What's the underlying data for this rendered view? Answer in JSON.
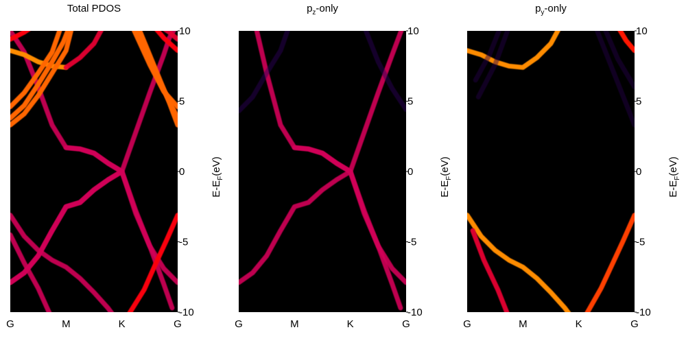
{
  "chart_data": [
    {
      "type": "heatmap",
      "title": "Total PDOS",
      "ylabel": "E-E_F(eV)",
      "ylabel_base": "E-E",
      "ylabel_sub": "F",
      "ylabel_tail": "(eV)",
      "x_ticks": [
        "G",
        "M",
        "K",
        "G"
      ],
      "y_ticks": [
        10,
        5,
        0,
        -5,
        -10
      ],
      "ylim": [
        -10,
        10
      ],
      "colormap": [
        "#000000",
        "#8000ff",
        "#ff0000",
        "#ffff00"
      ],
      "bands": [
        {
          "weight": 0.55,
          "points": [
            [
              0,
              -7.9
            ],
            [
              0.25,
              -7.2
            ],
            [
              0.5,
              -6.0
            ],
            [
              0.75,
              -4.2
            ],
            [
              1.0,
              -2.5
            ],
            [
              1.25,
              -2.2
            ],
            [
              1.5,
              -1.3
            ],
            [
              1.75,
              -0.6
            ],
            [
              2.0,
              0.0
            ]
          ]
        },
        {
          "weight": 0.55,
          "points": [
            [
              0,
              -7.9
            ],
            [
              0.25,
              -7.2
            ],
            [
              0.5,
              -6.0
            ],
            [
              0.75,
              -4.2
            ],
            [
              1.0,
              -2.5
            ],
            [
              1.25,
              -2.2
            ],
            [
              1.5,
              -1.3
            ],
            [
              1.75,
              -0.6
            ],
            [
              2.0,
              0.0
            ],
            [
              2.25,
              -3.0
            ],
            [
              2.5,
              -5.3
            ],
            [
              2.75,
              -6.9
            ],
            [
              3.0,
              -7.9
            ]
          ]
        },
        {
          "weight": 0.55,
          "points": [
            [
              0,
              10.0
            ],
            [
              0.25,
              8.5
            ],
            [
              0.5,
              6.0
            ],
            [
              0.75,
              3.3
            ],
            [
              1.0,
              1.7
            ],
            [
              1.25,
              1.6
            ],
            [
              1.5,
              1.3
            ],
            [
              1.75,
              0.6
            ],
            [
              2.0,
              0.0
            ],
            [
              2.25,
              2.8
            ],
            [
              2.5,
              5.6
            ],
            [
              2.75,
              8.3
            ],
            [
              2.85,
              9.5
            ],
            [
              3.0,
              10.5
            ]
          ]
        },
        {
          "weight": 0.55,
          "points": [
            [
              1.0,
              1.7
            ],
            [
              1.25,
              1.6
            ],
            [
              1.5,
              1.3
            ],
            [
              1.75,
              0.6
            ],
            [
              2.0,
              0.0
            ],
            [
              2.25,
              -2.8
            ],
            [
              2.5,
              -5.3
            ],
            [
              2.75,
              -8.0
            ],
            [
              2.9,
              -9.7
            ]
          ]
        },
        {
          "weight": 0.55,
          "points": [
            [
              0,
              -3.1
            ],
            [
              0.25,
              -4.6
            ],
            [
              0.5,
              -5.6
            ],
            [
              0.75,
              -6.3
            ],
            [
              1.0,
              -6.8
            ],
            [
              1.25,
              -7.6
            ],
            [
              1.5,
              -8.6
            ],
            [
              1.75,
              -9.7
            ],
            [
              1.9,
              -10.5
            ]
          ]
        },
        {
          "weight": 0.55,
          "points": [
            [
              0.0,
              -4.5
            ],
            [
              0.25,
              -6.5
            ],
            [
              0.5,
              -8.3
            ],
            [
              0.75,
              -10.5
            ]
          ]
        },
        {
          "weight": 0.65,
          "points": [
            [
              2.1,
              -10.3
            ],
            [
              2.4,
              -8.4
            ],
            [
              2.6,
              -6.6
            ],
            [
              2.8,
              -4.9
            ],
            [
              3.0,
              -3.1
            ]
          ]
        },
        {
          "weight": 0.85,
          "points": [
            [
              0,
              8.6
            ],
            [
              0.25,
              8.3
            ],
            [
              0.5,
              7.8
            ],
            [
              0.75,
              7.5
            ],
            [
              1.0,
              7.4
            ]
          ]
        },
        {
          "weight": 0.6,
          "points": [
            [
              1.0,
              7.4
            ],
            [
              1.25,
              8.1
            ],
            [
              1.5,
              9.1
            ],
            [
              1.65,
              10.2
            ]
          ]
        },
        {
          "weight": 0.65,
          "points": [
            [
              2.6,
              10.2
            ],
            [
              2.75,
              9.5
            ],
            [
              3.0,
              8.6
            ]
          ]
        },
        {
          "weight": 0.8,
          "points": [
            [
              0,
              4.6
            ],
            [
              0.25,
              5.6
            ],
            [
              0.5,
              7.0
            ],
            [
              0.75,
              8.5
            ],
            [
              0.9,
              10.2
            ]
          ]
        },
        {
          "weight": 0.8,
          "points": [
            [
              0,
              3.8
            ],
            [
              0.25,
              4.7
            ],
            [
              0.5,
              6.2
            ],
            [
              0.75,
              7.8
            ],
            [
              0.95,
              9.2
            ],
            [
              1.05,
              10.2
            ]
          ]
        },
        {
          "weight": 0.8,
          "points": [
            [
              0,
              3.3
            ],
            [
              0.25,
              4.1
            ],
            [
              0.5,
              5.4
            ],
            [
              0.75,
              7.0
            ],
            [
              1.0,
              8.6
            ],
            [
              1.1,
              10.2
            ]
          ]
        },
        {
          "weight": 0.65,
          "points": [
            [
              0,
              9.4
            ],
            [
              0.25,
              9.9
            ],
            [
              0.4,
              10.3
            ]
          ]
        },
        {
          "weight": 0.8,
          "points": [
            [
              2.2,
              10.2
            ],
            [
              2.5,
              7.6
            ],
            [
              2.75,
              5.7
            ],
            [
              3.0,
              4.6
            ]
          ]
        },
        {
          "weight": 0.8,
          "points": [
            [
              2.25,
              10.2
            ],
            [
              2.55,
              7.4
            ],
            [
              2.8,
              5.4
            ],
            [
              3.0,
              3.8
            ]
          ]
        },
        {
          "weight": 0.8,
          "points": [
            [
              2.3,
              10.2
            ],
            [
              2.6,
              7.3
            ],
            [
              2.85,
              4.9
            ],
            [
              3.0,
              3.3
            ]
          ]
        },
        {
          "weight": 0.6,
          "points": [
            [
              2.7,
              10.3
            ],
            [
              2.85,
              9.9
            ],
            [
              3.0,
              9.4
            ]
          ]
        }
      ]
    },
    {
      "type": "heatmap",
      "title": "p_z-only",
      "title_base": "p",
      "title_sub": "z",
      "title_tail": "-only",
      "ylabel": "E-E_F(eV)",
      "ylabel_base": "E-E",
      "ylabel_sub": "F",
      "ylabel_tail": "(eV)",
      "x_ticks": [
        "G",
        "M",
        "K",
        "G"
      ],
      "y_ticks": [
        10,
        5,
        0,
        -5,
        -10
      ],
      "ylim": [
        -10,
        10
      ],
      "colormap": [
        "#000000",
        "#8000ff",
        "#ff0000",
        "#ffff00"
      ],
      "bands": [
        {
          "weight": 0.55,
          "points": [
            [
              0,
              -7.9
            ],
            [
              0.25,
              -7.2
            ],
            [
              0.5,
              -6.0
            ],
            [
              0.75,
              -4.2
            ],
            [
              1.0,
              -2.5
            ],
            [
              1.25,
              -2.2
            ],
            [
              1.5,
              -1.3
            ],
            [
              1.75,
              -0.6
            ],
            [
              2.0,
              0.0
            ],
            [
              2.25,
              -3.0
            ],
            [
              2.5,
              -5.3
            ],
            [
              2.75,
              -6.9
            ],
            [
              3.0,
              -7.9
            ]
          ]
        },
        {
          "weight": 0.55,
          "points": [
            [
              0.3,
              10.4
            ],
            [
              0.5,
              7.0
            ],
            [
              0.75,
              3.3
            ],
            [
              1.0,
              1.7
            ],
            [
              1.25,
              1.6
            ],
            [
              1.5,
              1.3
            ],
            [
              1.75,
              0.6
            ],
            [
              2.0,
              0.0
            ],
            [
              2.25,
              2.8
            ],
            [
              2.5,
              5.6
            ],
            [
              2.75,
              8.3
            ],
            [
              2.95,
              10.4
            ]
          ]
        },
        {
          "weight": 0.55,
          "points": [
            [
              1.0,
              1.7
            ],
            [
              1.25,
              1.6
            ],
            [
              1.5,
              1.3
            ],
            [
              1.75,
              0.6
            ],
            [
              2.0,
              0.0
            ],
            [
              2.25,
              -2.8
            ],
            [
              2.5,
              -5.3
            ],
            [
              2.75,
              -8.0
            ],
            [
              2.9,
              -9.7
            ]
          ]
        },
        {
          "weight": 0.12,
          "points": [
            [
              0,
              4.3
            ],
            [
              0.25,
              5.3
            ],
            [
              0.5,
              7.0
            ],
            [
              0.75,
              8.6
            ],
            [
              0.9,
              10.3
            ]
          ]
        },
        {
          "weight": 0.12,
          "points": [
            [
              2.25,
              10.3
            ],
            [
              2.5,
              7.8
            ],
            [
              2.75,
              5.9
            ],
            [
              3.0,
              4.4
            ]
          ]
        }
      ]
    },
    {
      "type": "heatmap",
      "title": "p_y-only",
      "title_base": "p",
      "title_sub": "y",
      "title_tail": "-only",
      "ylabel": "E-E_F(eV)",
      "ylabel_base": "E-E",
      "ylabel_sub": "F",
      "ylabel_tail": "(eV)",
      "x_ticks": [
        "G",
        "M",
        "K",
        "G"
      ],
      "y_ticks": [
        10,
        5,
        0,
        -5,
        -10
      ],
      "ylim": [
        -10,
        10
      ],
      "colormap": [
        "#000000",
        "#8000ff",
        "#ff0000",
        "#ffff00"
      ],
      "bands": [
        {
          "weight": 0.85,
          "points": [
            [
              0,
              8.6
            ],
            [
              0.25,
              8.3
            ],
            [
              0.5,
              7.8
            ],
            [
              0.75,
              7.5
            ],
            [
              1.0,
              7.4
            ],
            [
              1.25,
              8.1
            ],
            [
              1.5,
              9.1
            ],
            [
              1.65,
              10.2
            ]
          ]
        },
        {
          "weight": 0.7,
          "points": [
            [
              2.7,
              10.3
            ],
            [
              2.85,
              9.3
            ],
            [
              3.0,
              8.6
            ]
          ]
        },
        {
          "weight": 0.85,
          "points": [
            [
              0,
              -3.1
            ],
            [
              0.25,
              -4.6
            ],
            [
              0.5,
              -5.6
            ],
            [
              0.75,
              -6.3
            ],
            [
              1.0,
              -6.8
            ],
            [
              1.25,
              -7.6
            ],
            [
              1.5,
              -8.6
            ],
            [
              1.75,
              -9.7
            ],
            [
              1.9,
              -10.5
            ]
          ]
        },
        {
          "weight": 0.6,
          "points": [
            [
              0.1,
              -4.2
            ],
            [
              0.3,
              -6.3
            ],
            [
              0.55,
              -8.4
            ],
            [
              0.75,
              -10.4
            ]
          ]
        },
        {
          "weight": 0.75,
          "points": [
            [
              2.1,
              -10.4
            ],
            [
              2.4,
              -8.3
            ],
            [
              2.6,
              -6.6
            ],
            [
              2.8,
              -4.9
            ],
            [
              3.0,
              -3.1
            ]
          ]
        },
        {
          "weight": 0.1,
          "points": [
            [
              0.15,
              6.5
            ],
            [
              0.4,
              8.3
            ],
            [
              0.6,
              10.3
            ]
          ]
        },
        {
          "weight": 0.1,
          "points": [
            [
              0.2,
              5.3
            ],
            [
              0.5,
              7.6
            ],
            [
              0.75,
              10.3
            ]
          ]
        },
        {
          "weight": 0.1,
          "points": [
            [
              2.3,
              10.3
            ],
            [
              2.6,
              7.3
            ],
            [
              2.85,
              4.8
            ],
            [
              3.0,
              3.3
            ]
          ]
        },
        {
          "weight": 0.1,
          "points": [
            [
              2.45,
              10.3
            ],
            [
              2.7,
              8.0
            ],
            [
              3.0,
              6.0
            ]
          ]
        }
      ]
    }
  ]
}
